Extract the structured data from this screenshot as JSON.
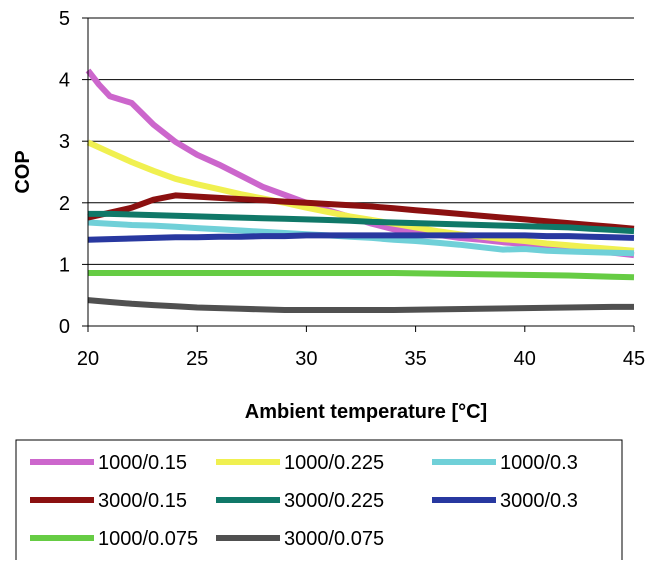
{
  "chart_data": {
    "type": "line",
    "title": "",
    "xlabel": "Ambient temperature [°C]",
    "ylabel": "COP",
    "xlim": [
      20,
      45
    ],
    "ylim": [
      0,
      5
    ],
    "xticks": [
      20,
      25,
      30,
      35,
      40,
      45
    ],
    "yticks": [
      0,
      1,
      2,
      3,
      4,
      5
    ],
    "grid": "horizontal",
    "legend_position": "bottom",
    "series": [
      {
        "name": "1000/0.15",
        "color": "#cc66cc",
        "x": [
          20,
          20.5,
          21,
          22,
          23,
          24,
          25,
          26,
          27,
          28,
          29,
          30,
          31,
          32,
          33,
          34,
          35,
          36,
          37,
          38,
          39,
          40,
          41,
          42,
          43,
          44,
          45
        ],
        "y": [
          4.15,
          3.92,
          3.73,
          3.62,
          3.27,
          2.99,
          2.78,
          2.62,
          2.44,
          2.26,
          2.13,
          2.0,
          1.88,
          1.77,
          1.66,
          1.57,
          1.52,
          1.48,
          1.43,
          1.4,
          1.36,
          1.33,
          1.3,
          1.27,
          1.23,
          1.19,
          1.15
        ]
      },
      {
        "name": "1000/0.225",
        "color": "#f0f050",
        "x": [
          20,
          21,
          22,
          23,
          24,
          25,
          26,
          27,
          28,
          29,
          30,
          31,
          32,
          33,
          34,
          35,
          36,
          37,
          38,
          39,
          40,
          41,
          42,
          43,
          44,
          45
        ],
        "y": [
          2.98,
          2.82,
          2.66,
          2.52,
          2.39,
          2.3,
          2.22,
          2.14,
          2.07,
          2.0,
          1.92,
          1.85,
          1.78,
          1.72,
          1.66,
          1.6,
          1.54,
          1.49,
          1.45,
          1.41,
          1.38,
          1.34,
          1.31,
          1.28,
          1.25,
          1.22
        ]
      },
      {
        "name": "1000/0.3",
        "color": "#70d0d8",
        "x": [
          20,
          21,
          22,
          23,
          24,
          25,
          26,
          27,
          28,
          29,
          30,
          31,
          32,
          33,
          34,
          35,
          36,
          37,
          38,
          39,
          40,
          41,
          42,
          43,
          44,
          45
        ],
        "y": [
          1.68,
          1.66,
          1.64,
          1.63,
          1.61,
          1.59,
          1.57,
          1.55,
          1.53,
          1.51,
          1.49,
          1.47,
          1.45,
          1.43,
          1.4,
          1.38,
          1.35,
          1.32,
          1.28,
          1.24,
          1.25,
          1.22,
          1.21,
          1.2,
          1.19,
          1.18
        ]
      },
      {
        "name": "3000/0.15",
        "color": "#8b1010",
        "x": [
          20,
          21,
          22,
          23,
          24,
          25,
          26,
          27,
          28,
          29,
          30,
          31,
          32,
          33,
          34,
          35,
          36,
          37,
          38,
          39,
          40,
          41,
          42,
          43,
          44,
          45
        ],
        "y": [
          1.76,
          1.84,
          1.92,
          2.05,
          2.12,
          2.1,
          2.08,
          2.06,
          2.04,
          2.02,
          2.0,
          1.98,
          1.96,
          1.94,
          1.91,
          1.88,
          1.85,
          1.82,
          1.79,
          1.76,
          1.73,
          1.7,
          1.67,
          1.64,
          1.61,
          1.58
        ]
      },
      {
        "name": "3000/0.225",
        "color": "#107868",
        "x": [
          20,
          21,
          22,
          23,
          24,
          25,
          26,
          27,
          28,
          29,
          30,
          31,
          32,
          33,
          34,
          35,
          36,
          37,
          38,
          39,
          40,
          41,
          42,
          43,
          44,
          45
        ],
        "y": [
          1.82,
          1.82,
          1.81,
          1.8,
          1.79,
          1.78,
          1.77,
          1.76,
          1.75,
          1.74,
          1.73,
          1.72,
          1.71,
          1.69,
          1.68,
          1.67,
          1.66,
          1.65,
          1.64,
          1.63,
          1.62,
          1.61,
          1.6,
          1.58,
          1.56,
          1.54
        ]
      },
      {
        "name": "3000/0.3",
        "color": "#2838a0",
        "x": [
          20,
          21,
          22,
          23,
          24,
          25,
          26,
          27,
          28,
          29,
          30,
          31,
          32,
          33,
          34,
          35,
          36,
          37,
          38,
          39,
          40,
          41,
          42,
          43,
          44,
          45
        ],
        "y": [
          1.4,
          1.41,
          1.42,
          1.43,
          1.44,
          1.44,
          1.45,
          1.45,
          1.46,
          1.46,
          1.47,
          1.47,
          1.47,
          1.47,
          1.47,
          1.47,
          1.47,
          1.47,
          1.47,
          1.47,
          1.47,
          1.46,
          1.46,
          1.45,
          1.44,
          1.43
        ]
      },
      {
        "name": "1000/0.075",
        "color": "#66cc44",
        "x": [
          20,
          22,
          24,
          26,
          28,
          30,
          32,
          34,
          36,
          38,
          40,
          42,
          44,
          45
        ],
        "y": [
          0.86,
          0.86,
          0.86,
          0.86,
          0.86,
          0.86,
          0.86,
          0.86,
          0.85,
          0.84,
          0.83,
          0.82,
          0.8,
          0.79
        ]
      },
      {
        "name": "3000/0.075",
        "color": "#505050",
        "x": [
          20,
          21,
          22,
          23,
          24,
          25,
          26,
          27,
          28,
          29,
          30,
          32,
          34,
          36,
          38,
          40,
          42,
          44,
          45
        ],
        "y": [
          0.42,
          0.39,
          0.36,
          0.34,
          0.32,
          0.3,
          0.29,
          0.28,
          0.27,
          0.26,
          0.26,
          0.26,
          0.26,
          0.27,
          0.28,
          0.29,
          0.3,
          0.31,
          0.31
        ]
      }
    ]
  }
}
